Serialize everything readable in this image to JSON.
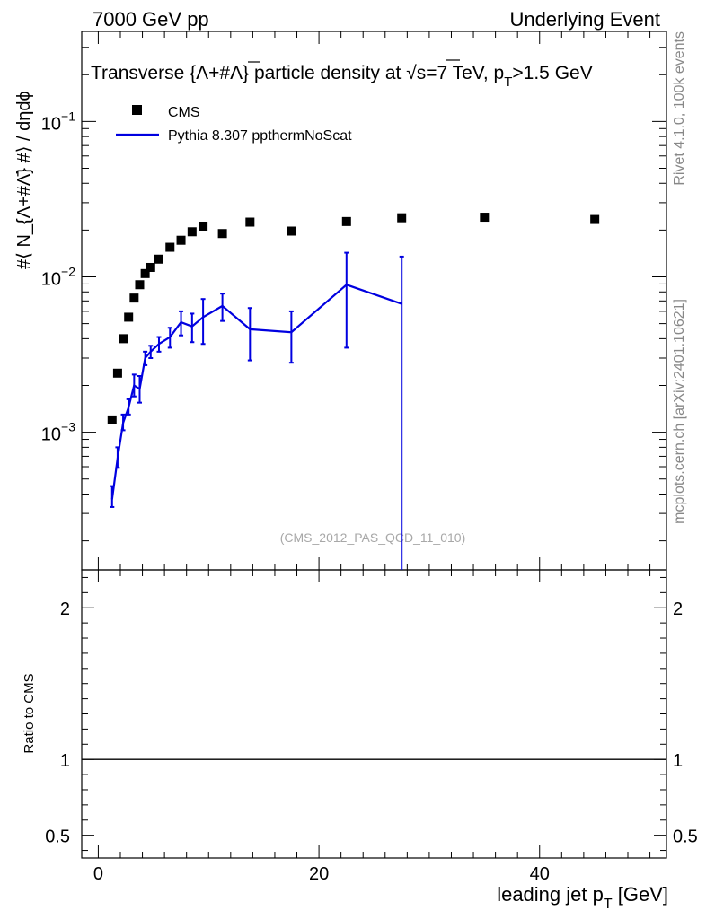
{
  "header": {
    "left": "7000 GeV pp",
    "right": "Underlying Event"
  },
  "side": {
    "rivet": "Rivet 4.1.0,  100k events",
    "mcplots": "mcplots.cern.ch [arXiv:2401.10621]"
  },
  "chart_data": {
    "type": "scatter",
    "title": "Transverse {Λ+#Λ̄} particle density at √s=7 TeV, pT>1.5 GeV",
    "title_main": "Transverse {Λ+#Λ} particle density at √s=7 TeV, p",
    "title_sub": "T",
    "title_tail": ">1.5 GeV",
    "ylabel": "#⟨ N_{Λ+#Λ̄} #⟩ / dηdϕ",
    "xlabel_main": "leading jet p",
    "xlabel_sub": "T",
    "xlabel_tail": " [GeV]",
    "ratio_ylabel": "Ratio to CMS",
    "watermark": "(CMS_2012_PAS_QCD_11_010)",
    "yscale": "log",
    "xlim": [
      -1.5,
      51.5
    ],
    "ylim": [
      0.00013,
      0.38
    ],
    "ratio_ylim": [
      0.35,
      2.25
    ],
    "x_ticks": [
      0,
      20,
      40
    ],
    "x_tick_labels": [
      "0",
      "20",
      "40"
    ],
    "y_ticks": [
      0.001,
      0.01,
      0.1
    ],
    "y_tick_labels": [
      {
        "base": "10",
        "exp": "−3"
      },
      {
        "base": "10",
        "exp": "−2"
      },
      {
        "base": "10",
        "exp": "−1"
      }
    ],
    "ratio_ticks": [
      0.5,
      1,
      2
    ],
    "ratio_tick_labels": [
      "0.5",
      "1",
      "2"
    ],
    "legend": [
      "CMS",
      "Pythia 8.307 ppthermNoScat"
    ],
    "series": [
      {
        "name": "CMS",
        "marker": "square",
        "color": "#000000",
        "x": [
          1.25,
          1.75,
          2.25,
          2.75,
          3.25,
          3.75,
          4.25,
          4.75,
          5.5,
          6.5,
          7.5,
          8.5,
          9.5,
          11.25,
          13.75,
          17.5,
          22.5,
          27.5,
          35,
          45
        ],
        "y": [
          0.0012,
          0.0024,
          0.004,
          0.0055,
          0.0073,
          0.0089,
          0.0105,
          0.0115,
          0.013,
          0.0155,
          0.0172,
          0.0195,
          0.0212,
          0.019,
          0.0225,
          0.0197,
          0.0227,
          0.024,
          0.0242,
          0.0234
        ]
      },
      {
        "name": "Pythia 8.307 ppthermNoScat",
        "marker": "line",
        "color": "#0000e0",
        "x": [
          1.25,
          1.75,
          2.25,
          2.75,
          3.25,
          3.75,
          4.25,
          4.75,
          5.5,
          6.5,
          7.5,
          8.5,
          9.5,
          11.25,
          13.75,
          17.5,
          22.5,
          27.5
        ],
        "y": [
          0.00037,
          0.00068,
          0.00115,
          0.00145,
          0.002,
          0.0019,
          0.003,
          0.0033,
          0.0037,
          0.0041,
          0.0051,
          0.0048,
          0.0055,
          0.0065,
          0.0046,
          0.0044,
          0.0089,
          0.0067
        ],
        "err_lo": [
          4e-05,
          9e-05,
          0.00012,
          0.00015,
          0.0003,
          0.00035,
          0.0003,
          0.0003,
          0.0004,
          0.0006,
          0.0009,
          0.001,
          0.0018,
          0.0013,
          0.0017,
          0.0016,
          0.0054,
          0.0067
        ],
        "err_hi": [
          8e-05,
          0.00012,
          0.00015,
          0.00018,
          0.00035,
          0.0004,
          0.0003,
          0.0003,
          0.0004,
          0.0006,
          0.0009,
          0.001,
          0.0017,
          0.0013,
          0.0017,
          0.0016,
          0.0054,
          0.0068
        ]
      }
    ]
  }
}
